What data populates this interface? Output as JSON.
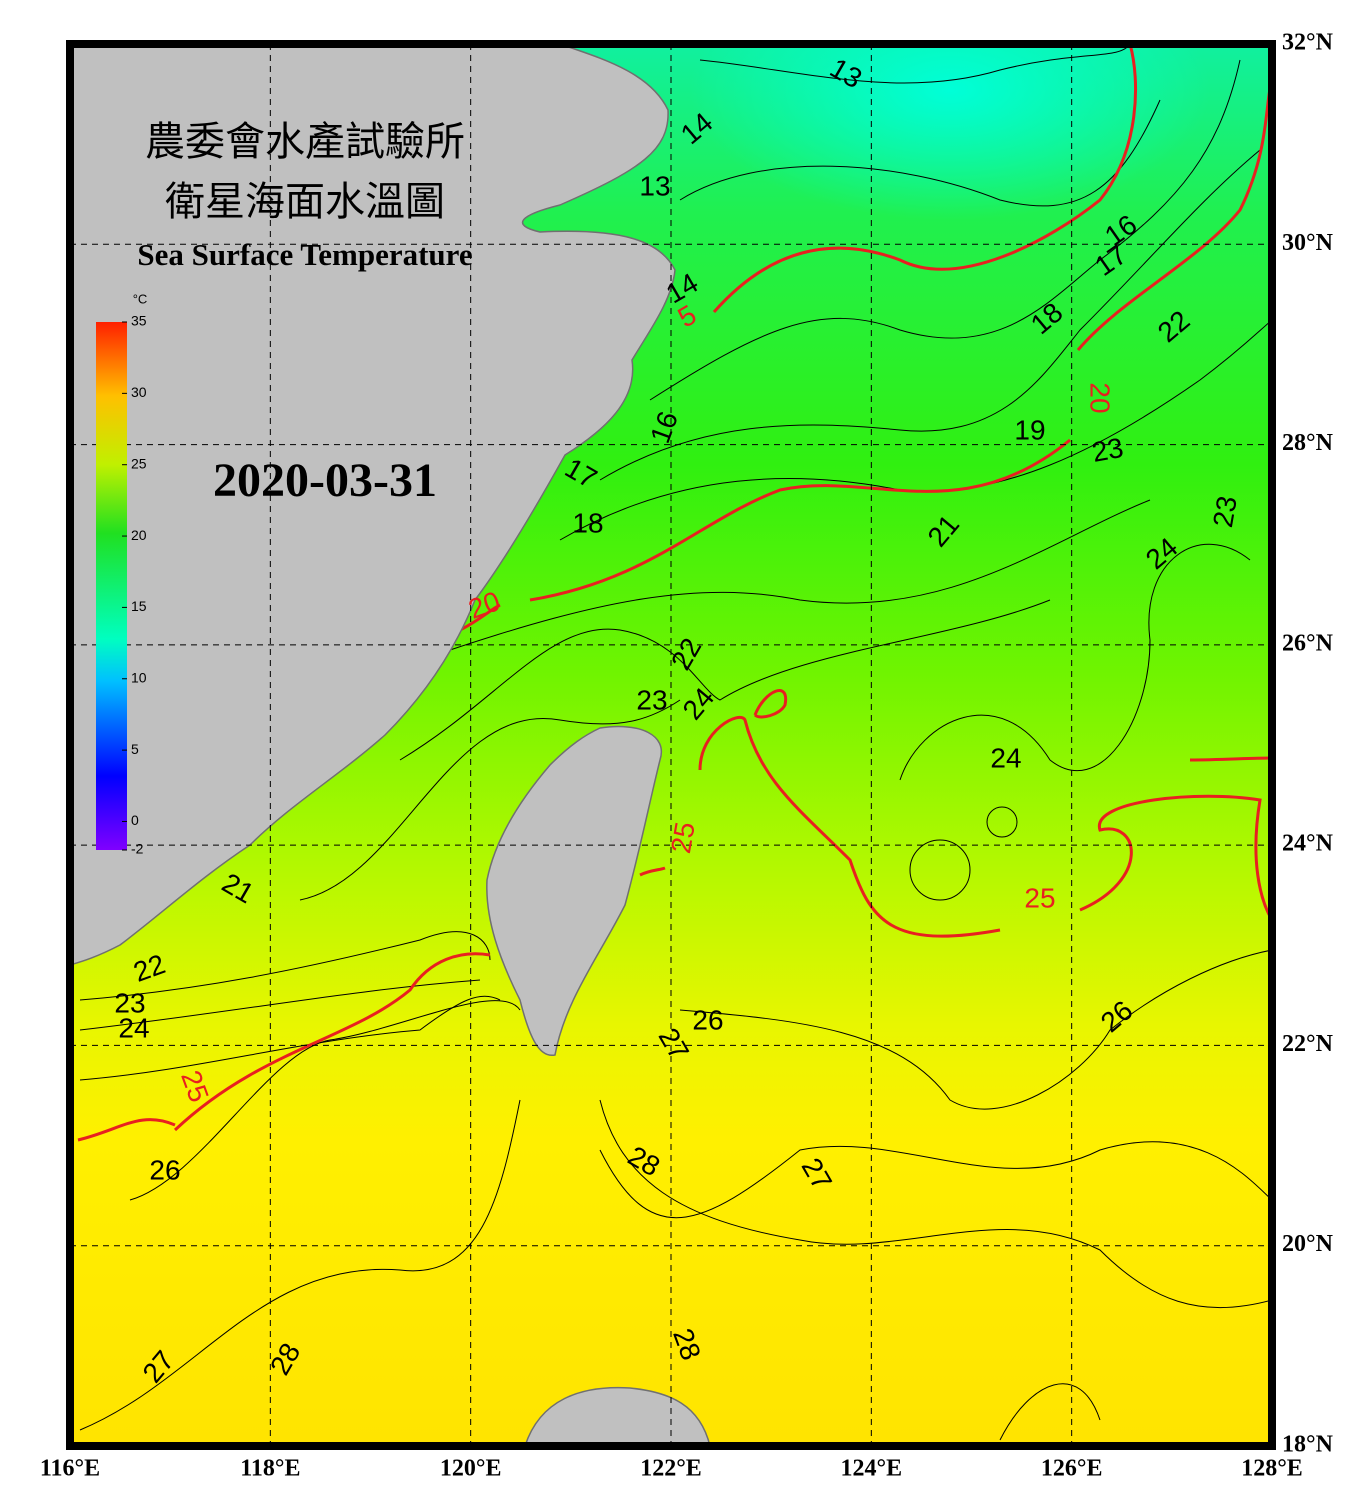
{
  "header": {
    "title_zh_1": "農委會水產試驗所",
    "title_zh_2": "衛星海面水溫圖",
    "title_en": "Sea Surface Temperature"
  },
  "date": "2020-03-31",
  "colorbar": {
    "unit": "°C",
    "ticks": [
      35,
      30,
      25,
      20,
      15,
      10,
      5,
      0,
      -2
    ]
  },
  "axes": {
    "lon_ticks": [
      {
        "value": 116,
        "label": "116°E"
      },
      {
        "value": 118,
        "label": "118°E"
      },
      {
        "value": 120,
        "label": "120°E"
      },
      {
        "value": 122,
        "label": "122°E"
      },
      {
        "value": 124,
        "label": "124°E"
      },
      {
        "value": 126,
        "label": "126°E"
      },
      {
        "value": 128,
        "label": "128°E"
      }
    ],
    "lat_ticks": [
      {
        "value": 32,
        "label": "32°N"
      },
      {
        "value": 30,
        "label": "30°N"
      },
      {
        "value": 28,
        "label": "28°N"
      },
      {
        "value": 26,
        "label": "26°N"
      },
      {
        "value": 24,
        "label": "24°N"
      },
      {
        "value": 22,
        "label": "22°N"
      },
      {
        "value": 20,
        "label": "20°N"
      },
      {
        "value": 18,
        "label": "18°N"
      }
    ]
  },
  "contour_labels": [
    13,
    14,
    13,
    14,
    5,
    16,
    17,
    18,
    22,
    20,
    16,
    19,
    23,
    17,
    23,
    18,
    21,
    24,
    20,
    22,
    23,
    24,
    24,
    25,
    21,
    25,
    22,
    23,
    24,
    26,
    26,
    27,
    25,
    28,
    27,
    26,
    27,
    28,
    28
  ]
}
